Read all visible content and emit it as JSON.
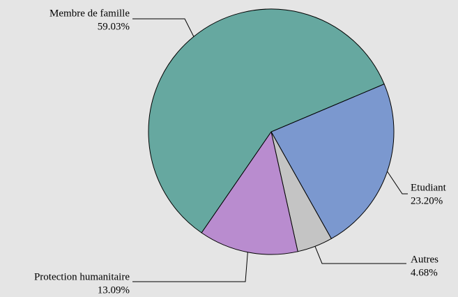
{
  "chart_data": {
    "type": "pie",
    "categories": [
      "Etudiant",
      "Autres",
      "Protection humanitaire",
      "Membre de famille"
    ],
    "values": [
      23.2,
      4.68,
      13.09,
      59.03
    ],
    "value_labels": [
      "23.20%",
      "4.68%",
      "13.09%",
      "59.03%"
    ],
    "colors": [
      "#7b98cf",
      "#c4c4c4",
      "#b98ccf",
      "#66a8a0"
    ]
  }
}
